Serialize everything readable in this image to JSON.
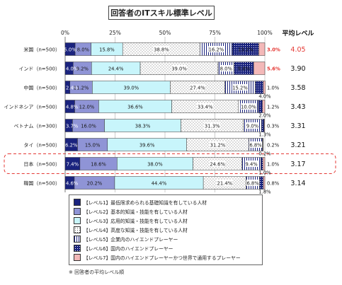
{
  "chart_title": "回答者のITスキル標準レベル",
  "avg_header": "平均レベル",
  "note": "※ 回答者の平均レベル順",
  "chart_data": {
    "type": "bar",
    "orientation": "horizontal-stacked-100",
    "title": "回答者のITスキル標準レベル",
    "x_ticks": [
      "0%",
      "25%",
      "50%",
      "75%",
      "100%"
    ],
    "xlim": [
      0,
      100
    ],
    "categories": [
      "米国（n=500）",
      "インド（n=500）",
      "中国（n=500）",
      "インドネシア（n=500）",
      "ベトナム（n=300）",
      "タイ（n=500）",
      "日本（n=500）",
      "韓国（n=500）"
    ],
    "averages": [
      "4.05",
      "3.90",
      "3.58",
      "3.43",
      "3.31",
      "3.21",
      "3.17",
      "3.14"
    ],
    "highlight_category": "日本（n=500）",
    "legend_position": "bottom",
    "series": [
      {
        "name": "【レベル1】最低限求められる基礎知識を有している人材",
        "color": "#1a237e",
        "values": [
          5.0,
          4.0,
          2.4,
          4.8,
          3.7,
          6.2,
          7.4,
          4.6
        ]
      },
      {
        "name": "【レベル2】基本的知識・技能を有している人材",
        "color": "#8f94d6",
        "values": [
          8.0,
          9.2,
          11.2,
          12.0,
          16.0,
          15.0,
          18.6,
          20.2
        ]
      },
      {
        "name": "【レベル3】応用的知識・技能を有している人材",
        "color": "#c8f5fb",
        "values": [
          15.8,
          24.4,
          39.0,
          36.6,
          38.3,
          39.6,
          38.0,
          44.4
        ]
      },
      {
        "name": "【レベル4】高度な知識・技能を有している人材",
        "color": "#ffffff",
        "values": [
          38.8,
          39.0,
          27.4,
          33.4,
          31.3,
          31.2,
          24.6,
          21.4
        ]
      },
      {
        "name": "【レベル5】企業内のハイエンドプレーヤー",
        "color": "#ffffff",
        "values": [
          16.2,
          8.0,
          15.2,
          10.0,
          9.0,
          6.8,
          9.4,
          6.8
        ]
      },
      {
        "name": "【レベル6】国内のハイエンドプレーヤー",
        "color": "#2b3a8c",
        "values": [
          13.2,
          9.8,
          4.0,
          2.0,
          1.3,
          0.2,
          1.0,
          1.8
        ]
      },
      {
        "name": "【レベル7】国内のハイエンドプレーヤーかつ世界で通用するプレーヤー",
        "color": "#f3b8b8",
        "values": [
          3.0,
          5.6,
          1.0,
          1.2,
          0.3,
          0.2,
          1.0,
          0.8
        ]
      }
    ],
    "segment_labels": [
      [
        "5.0%",
        "8.0%",
        "15.8%",
        "38.8%",
        "16.2%",
        "13.2%",
        "3.0%"
      ],
      [
        "4.0%",
        "9.2%",
        "24.4%",
        "39.0%",
        "8.0%",
        "9.8%",
        "5.6%"
      ],
      [
        "2.4%",
        "11.2%",
        "39.0%",
        "27.4%",
        "15.2%",
        "4.0%",
        "1.0%"
      ],
      [
        "4.8%",
        "12.0%",
        "36.6%",
        "33.4%",
        "10.0%",
        "2.0%",
        "1.2%"
      ],
      [
        "3.7%",
        "16.0%",
        "38.3%",
        "31.3%",
        "9.0%",
        "1.3%",
        "0.3%"
      ],
      [
        "6.2%",
        "15.0%",
        "39.6%",
        "31.2%",
        "6.8%",
        "0.2%",
        "0.2%"
      ],
      [
        "7.4%",
        "18.6%",
        "38.0%",
        "24.6%",
        "9.4%",
        "1.0%",
        "1.0%"
      ],
      [
        "4.6%",
        "20.2%",
        "44.4%",
        "21.4%",
        "6.8%",
        "1.8%",
        "0.8%"
      ]
    ],
    "red_labels": [
      "3.0%",
      "5.6%"
    ],
    "red_averages": [
      "4.05"
    ]
  }
}
